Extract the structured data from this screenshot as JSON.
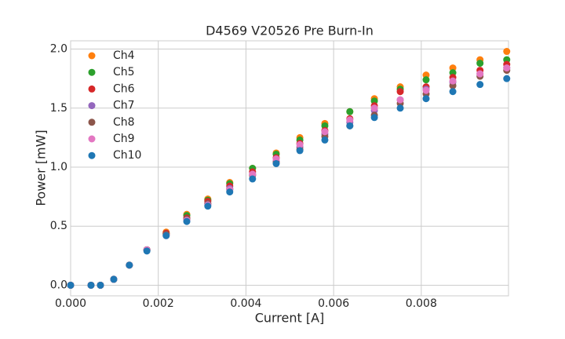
{
  "chart_data": {
    "type": "scatter",
    "title": "D4569 V20526 Pre Burn-In",
    "xlabel": "Current [A]",
    "ylabel": "Power [mW]",
    "x": [
      0,
      0.000465,
      0.00068,
      0.000984,
      0.00134,
      0.00174,
      0.00218,
      0.00265,
      0.00313,
      0.00363,
      0.00415,
      0.00469,
      0.00523,
      0.0058,
      0.00637,
      0.00693,
      0.00752,
      0.00811,
      0.00872,
      0.00934,
      0.00995
    ],
    "series": [
      {
        "name": "Ch4",
        "color": "#ff7f0e",
        "values": [
          0,
          0,
          0,
          0.05,
          0.17,
          0.3,
          0.45,
          0.6,
          0.73,
          0.87,
          0.99,
          1.12,
          1.25,
          1.37,
          1.47,
          1.58,
          1.68,
          1.78,
          1.84,
          1.91,
          1.98
        ]
      },
      {
        "name": "Ch5",
        "color": "#2ca02c",
        "values": [
          0,
          0,
          0,
          0.05,
          0.17,
          0.3,
          0.44,
          0.59,
          0.72,
          0.86,
          0.99,
          1.11,
          1.23,
          1.35,
          1.47,
          1.56,
          1.66,
          1.74,
          1.8,
          1.88,
          1.91
        ]
      },
      {
        "name": "Ch6",
        "color": "#d62728",
        "values": [
          0,
          0,
          0,
          0.05,
          0.17,
          0.3,
          0.44,
          0.57,
          0.71,
          0.84,
          0.96,
          1.08,
          1.2,
          1.31,
          1.41,
          1.52,
          1.64,
          1.68,
          1.76,
          1.82,
          1.87
        ]
      },
      {
        "name": "Ch7",
        "color": "#9467bd",
        "values": [
          0,
          0,
          0,
          0.05,
          0.17,
          0.3,
          0.43,
          0.56,
          0.69,
          0.82,
          0.94,
          1.05,
          1.17,
          1.28,
          1.38,
          1.48,
          1.57,
          1.66,
          1.72,
          1.79,
          1.84
        ]
      },
      {
        "name": "Ch8",
        "color": "#8c564b",
        "values": [
          0,
          0,
          0,
          0.05,
          0.17,
          0.3,
          0.43,
          0.56,
          0.69,
          0.81,
          0.93,
          1.04,
          1.15,
          1.26,
          1.35,
          1.44,
          1.54,
          1.62,
          1.69,
          1.77,
          1.82
        ]
      },
      {
        "name": "Ch9",
        "color": "#e377c2",
        "values": [
          0,
          0,
          0,
          0.05,
          0.17,
          0.3,
          0.42,
          0.55,
          0.68,
          0.81,
          0.94,
          1.07,
          1.19,
          1.3,
          1.4,
          1.5,
          1.57,
          1.65,
          1.73,
          1.79,
          1.84
        ]
      },
      {
        "name": "Ch10",
        "color": "#1f77b4",
        "values": [
          0,
          0,
          0,
          0.05,
          0.17,
          0.29,
          0.42,
          0.54,
          0.67,
          0.79,
          0.9,
          1.03,
          1.14,
          1.23,
          1.35,
          1.42,
          1.5,
          1.58,
          1.64,
          1.7,
          1.75
        ]
      }
    ],
    "xlim": [
      0,
      0.00999
    ],
    "ylim": [
      -0.09,
      2.07
    ],
    "xticks": [
      {
        "value": 0,
        "label": "0.000"
      },
      {
        "value": 0.002,
        "label": "0.002"
      },
      {
        "value": 0.004,
        "label": "0.004"
      },
      {
        "value": 0.006,
        "label": "0.006"
      },
      {
        "value": 0.008,
        "label": "0.008"
      }
    ],
    "yticks": [
      {
        "value": 0,
        "label": "0.0"
      },
      {
        "value": 0.5,
        "label": "0.5"
      },
      {
        "value": 1,
        "label": "1.0"
      },
      {
        "value": 1.5,
        "label": "1.5"
      },
      {
        "value": 2,
        "label": "2.0"
      }
    ],
    "grid": true,
    "legend": "upper left"
  }
}
